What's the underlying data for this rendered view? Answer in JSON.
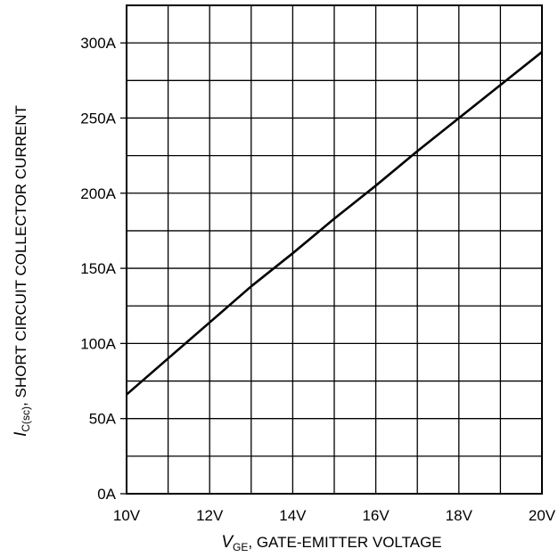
{
  "chart_data": {
    "type": "line",
    "xlabel": {
      "symbol": "V",
      "subscript": "GE",
      "text": ", GATE-EMITTER VOLTAGE"
    },
    "ylabel": {
      "symbol": "I",
      "subscript": "C(sc)",
      "text": ",  SHORT CIRCUIT COLLECTOR CURRENT"
    },
    "xlim": [
      10,
      20
    ],
    "ylim": [
      0,
      325
    ],
    "x_ticks": [
      10,
      12,
      14,
      16,
      18,
      20
    ],
    "x_tick_labels": [
      "10V",
      "12V",
      "14V",
      "16V",
      "18V",
      "20V"
    ],
    "y_ticks": [
      0,
      50,
      100,
      150,
      200,
      250,
      300
    ],
    "y_tick_labels": [
      "0A",
      "50A",
      "100A",
      "150A",
      "200A",
      "250A",
      "300A"
    ],
    "x_grid_minor": [
      11,
      13,
      15,
      17,
      19
    ],
    "y_grid_minor": [
      25,
      75,
      125,
      175,
      225,
      275
    ],
    "grid": true,
    "series": [
      {
        "x": [
          10,
          11,
          12,
          13,
          14,
          15,
          16,
          17,
          18,
          19,
          20
        ],
        "values": [
          66,
          90,
          114,
          138,
          160,
          183,
          205,
          228,
          250,
          272,
          294
        ]
      }
    ]
  }
}
